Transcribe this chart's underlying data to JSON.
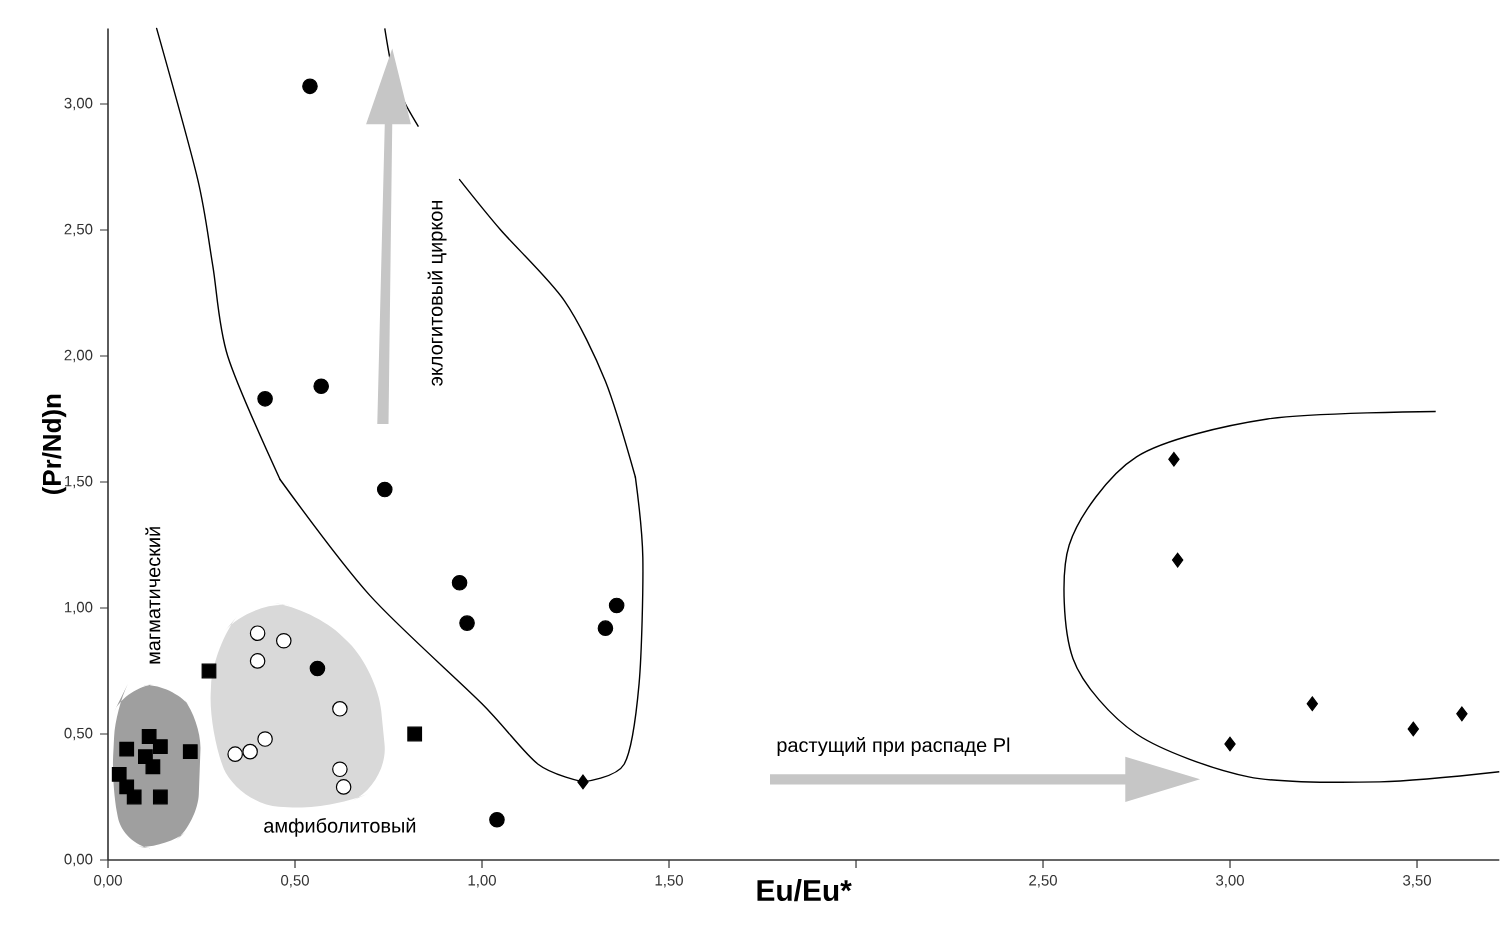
{
  "chart_data": {
    "type": "scatter",
    "xlabel": "Eu/Eu*",
    "ylabel": "(Pr/Nd)n",
    "xlim": [
      0,
      3.72
    ],
    "ylim": [
      0,
      3.3
    ],
    "xticks": [
      {
        "value": 0,
        "label": "0,00"
      },
      {
        "value": 0.5,
        "label": "0,50"
      },
      {
        "value": 1,
        "label": "1,00"
      },
      {
        "value": 1.5,
        "label": "1,50"
      },
      {
        "value": 2,
        "label": null
      },
      {
        "value": 2.5,
        "label": "2,50"
      },
      {
        "value": 3,
        "label": "3,00"
      },
      {
        "value": 3.5,
        "label": "3,50"
      }
    ],
    "yticks": [
      {
        "value": 0,
        "label": "0,00"
      },
      {
        "value": 0.5,
        "label": "0,50"
      },
      {
        "value": 1,
        "label": "1,00"
      },
      {
        "value": 1.5,
        "label": "1,50"
      },
      {
        "value": 2,
        "label": "2,00"
      },
      {
        "value": 2.5,
        "label": "2,50"
      },
      {
        "value": 3,
        "label": "3,00"
      }
    ],
    "grid": false,
    "series": [
      {
        "marker": "circle",
        "color": "#000000",
        "x": [
          0.54,
          0.42,
          0.57,
          0.74,
          0.94,
          0.96,
          1.36,
          1.33,
          0.56,
          1.04
        ],
        "values": [
          3.07,
          1.83,
          1.88,
          1.47,
          1.1,
          0.94,
          1.01,
          0.92,
          0.76,
          0.16
        ]
      },
      {
        "marker": "circle",
        "color": "#ffffff",
        "x": [
          0.4,
          0.47,
          0.4,
          0.62,
          0.42,
          0.38,
          0.34,
          0.62,
          0.63
        ],
        "values": [
          0.9,
          0.87,
          0.79,
          0.6,
          0.48,
          0.43,
          0.42,
          0.36,
          0.29
        ]
      },
      {
        "marker": "square",
        "color": "#000000",
        "x": [
          0.27,
          0.82,
          0.05,
          0.11,
          0.14,
          0.1,
          0.22,
          0.03,
          0.12,
          0.05,
          0.07,
          0.14
        ],
        "values": [
          0.75,
          0.5,
          0.44,
          0.49,
          0.45,
          0.41,
          0.43,
          0.34,
          0.37,
          0.29,
          0.25,
          0.25
        ]
      },
      {
        "marker": "diamond",
        "color": "#000000",
        "x": [
          1.27,
          2.85,
          2.86,
          3.0,
          3.22,
          3.49,
          3.62
        ],
        "values": [
          0.31,
          1.59,
          1.19,
          0.46,
          0.62,
          0.52,
          0.58
        ]
      }
    ],
    "annotations": [
      "магматический",
      "эклогитовый циркон",
      "амфиболитовый",
      "растущий при распаде Pl"
    ]
  }
}
